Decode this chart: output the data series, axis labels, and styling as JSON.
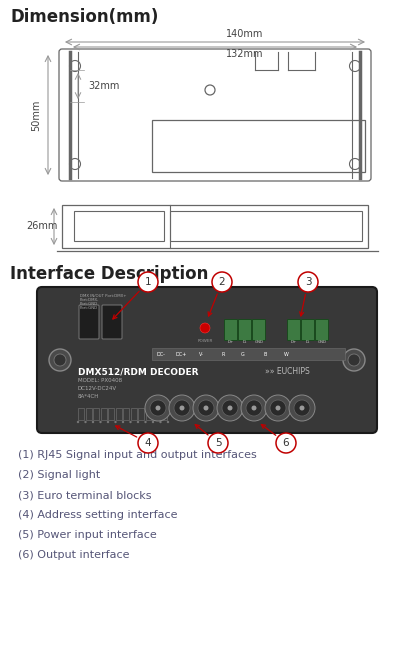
{
  "title_dimension": "Dimension(mm)",
  "title_interface": "Interface Description",
  "dim_140": "140mm",
  "dim_132": "132mm",
  "dim_50": "50mm",
  "dim_32": "32mm",
  "dim_26": "26mm",
  "descriptions": [
    "(1) RJ45 Signal input and output interfaces",
    "(2) Signal light",
    "(3) Euro terminal blocks",
    "(4) Address setting interface",
    "(5) Power input interface",
    "(6) Output interface"
  ],
  "bg_color": "#ffffff",
  "device_color": "#383838",
  "line_color": "#666666",
  "dim_line_color": "#999999",
  "label_circle_edge": "#c00000",
  "label_arrow_color": "#c00000",
  "green_terminal": "#3d7a42",
  "desc_color": "#555577",
  "ch_labels": [
    "DC-",
    "DC+",
    "V-",
    "R",
    "G",
    "B",
    "W"
  ]
}
